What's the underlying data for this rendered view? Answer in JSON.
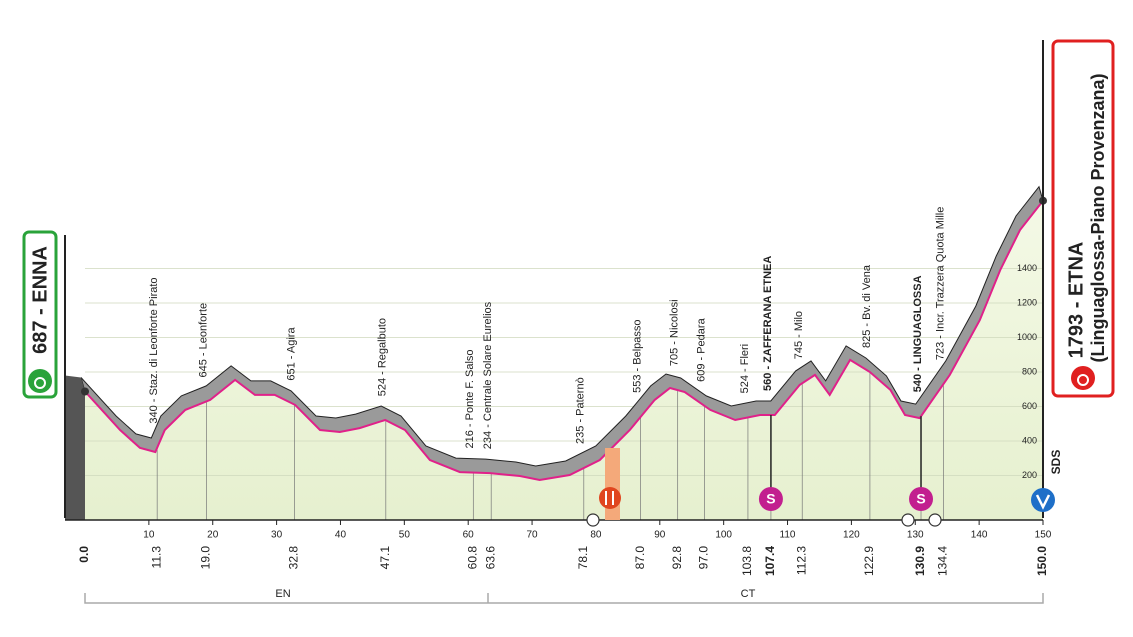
{
  "chart_data": {
    "type": "profile",
    "start_label": "687 - ENNA",
    "finish_label": "1793 - ETNA",
    "finish_sublabel": "(Linguaglossa-Piano Provenzana)",
    "x": [
      0,
      5.5,
      8.6,
      11,
      12.5,
      15.7,
      19.6,
      23.5,
      26.6,
      29.7,
      32.9,
      36.8,
      39.9,
      43,
      47,
      50.1,
      54,
      58.7,
      63.4,
      68.1,
      71.2,
      75.9,
      80.6,
      85.3,
      89.2,
      91.6,
      93.9,
      97.9,
      101.8,
      105.7,
      108,
      111.9,
      114.3,
      116.6,
      119.8,
      122.9,
      126.1,
      128.4,
      130.7,
      135.4,
      140.1,
      143.3,
      146.4,
      150
    ],
    "values": [
      687,
      464,
      360,
      336,
      464,
      580,
      638,
      754,
      667,
      667,
      609,
      464,
      452,
      475,
      522,
      464,
      290,
      220,
      214,
      197,
      174,
      203,
      290,
      464,
      638,
      707,
      684,
      580,
      522,
      551,
      551,
      725,
      783,
      667,
      870,
      800,
      696,
      551,
      533,
      783,
      1101,
      1391,
      1623,
      1793
    ],
    "line_color": "#e0218a",
    "fill_color": "#eef5dc",
    "xlim": [
      0,
      150
    ],
    "ylim": [
      0,
      1800
    ],
    "xticks": [
      10,
      20,
      30,
      40,
      50,
      60,
      70,
      80,
      90,
      100,
      110,
      120,
      130,
      140,
      150
    ],
    "yticks": [
      200,
      400,
      600,
      800,
      1000,
      1200,
      1400
    ],
    "km_marks": [
      {
        "value": 0,
        "label": "0.0"
      },
      11.3,
      {
        "value": 19,
        "label": "19.0"
      },
      32.8,
      47.1,
      60.8,
      63.6,
      78.1,
      {
        "value": 87,
        "label": "87.0"
      },
      92.8,
      {
        "value": 97,
        "label": "97.0"
      },
      103.8,
      107.4,
      112.3,
      122.9,
      130.9,
      134.4,
      {
        "value": 150,
        "label": "150.0"
      }
    ],
    "places": [
      {
        "name": "340 - Staz. di Leonforte Pirato",
        "km": 11.3
      },
      {
        "name": "645 - Leonforte",
        "km": 19.0
      },
      {
        "name": "651 - Agira",
        "km": 32.8
      },
      {
        "name": "524 - Regalbuto",
        "km": 47.1
      },
      {
        "name": "216 - Ponte F. Salso",
        "km": 60.8
      },
      {
        "name": "234 - Centrale Solare Eurelios",
        "km": 63.6
      },
      {
        "name": "235 - Paternò",
        "km": 78.1
      },
      {
        "name": "553 - Belpasso",
        "km": 87.0
      },
      {
        "name": "705 - Nicolosi",
        "km": 92.8
      },
      {
        "name": "609 - Pedara",
        "km": 97.0
      },
      {
        "name": "524 - Fleri",
        "km": 103.8
      },
      {
        "name": "560 - ZAFFERANA ETNEA",
        "km": 107.4,
        "bold": true
      },
      {
        "name": "745 - Milo",
        "km": 112.3
      },
      {
        "name": "825 - Bv. di Vena",
        "km": 122.9
      },
      {
        "name": "540 - LINGUAGLOSSA",
        "km": 130.9,
        "bold": true
      },
      {
        "name": "723 - Incr. Trazzera Quota Mille",
        "km": 134.4
      }
    ],
    "sprints": [
      {
        "km": 107.4,
        "symbol": "S"
      },
      {
        "km": 130.9,
        "symbol": "S"
      }
    ],
    "regions": [
      "EN",
      "CT"
    ],
    "finish_note": "SDS"
  }
}
